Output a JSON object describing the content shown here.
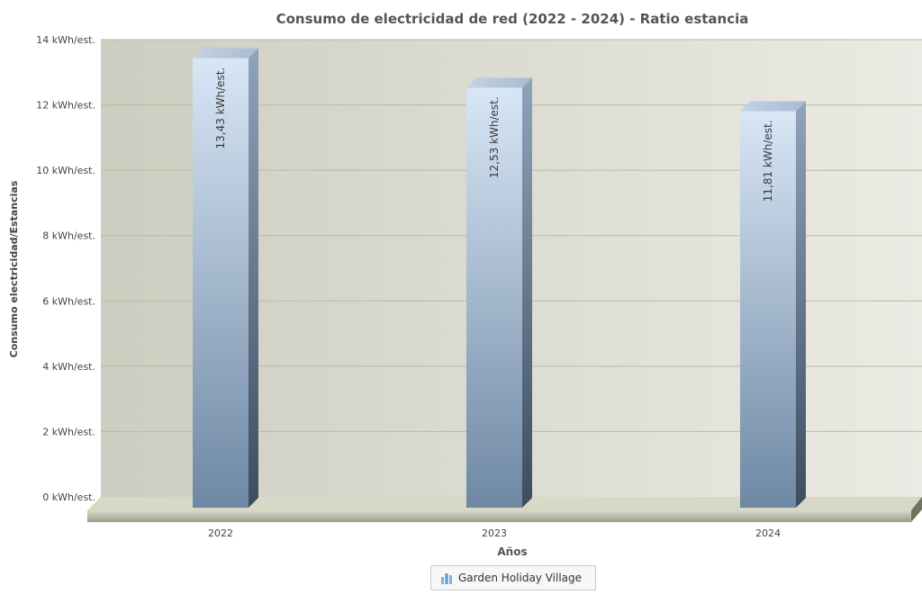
{
  "chart_data": {
    "type": "bar",
    "title": "Consumo de electricidad de red (2022 - 2024) - Ratio estancia",
    "xlabel": "Años",
    "ylabel": "Consumo electricidad/Estancias",
    "categories": [
      "2022",
      "2023",
      "2024"
    ],
    "series": [
      {
        "name": "Garden Holiday Village",
        "values": [
          13.43,
          12.53,
          11.81
        ],
        "labels": [
          "13,43 kWh/est.",
          "12,53 kWh/est.",
          "11,81 kWh/est."
        ]
      }
    ],
    "ylim": [
      0,
      14
    ],
    "yticks": [
      0,
      2,
      4,
      6,
      8,
      10,
      12,
      14
    ],
    "ytick_labels": [
      "0 kWh/est.",
      "2 kWh/est.",
      "4 kWh/est.",
      "6 kWh/est.",
      "8 kWh/est.",
      "10 kWh/est.",
      "12 kWh/est.",
      "14 kWh/est."
    ],
    "grid": true,
    "legend_position": "bottom-center",
    "colors": {
      "bar_top": "#d8e6f5",
      "bar_bottom": "#6e88a4",
      "plot_bg_left": "#cdcdc2",
      "plot_bg_right": "#ebebe4",
      "grid": "#b9bd96",
      "floor": "#a2a58f"
    }
  },
  "legend": {
    "icon": "bar-chart-icon"
  }
}
